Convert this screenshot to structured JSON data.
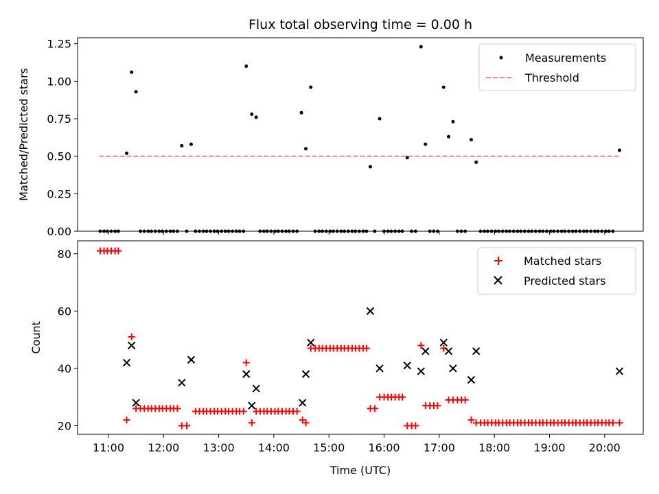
{
  "chart_data": {
    "type": "scatter",
    "title": "Flux total observing time = 0.00 h",
    "xlabel": "Time (UTC)",
    "x_ticks": [
      "11:00",
      "12:00",
      "13:00",
      "14:00",
      "15:00",
      "16:00",
      "17:00",
      "18:00",
      "19:00",
      "20:00"
    ],
    "x_tick_hours": [
      11,
      12,
      13,
      14,
      15,
      16,
      17,
      18,
      19,
      20
    ],
    "xlim": [
      10.44,
      20.7
    ],
    "top": {
      "ylabel": "Matched/Predicted stars",
      "ylim": [
        0,
        1.29
      ],
      "y_ticks": [
        "0.00",
        "0.25",
        "0.50",
        "0.75",
        "1.00",
        "1.25"
      ],
      "y_tick_values": [
        0,
        0.25,
        0.5,
        0.75,
        1.0,
        1.25
      ],
      "legend": {
        "location": "upper right",
        "entries": [
          "Measurements",
          "Threshold"
        ]
      },
      "threshold": {
        "value": 0.5,
        "x_range": [
          10.83,
          20.27
        ],
        "color": "#ff8080"
      },
      "measurements": [
        [
          10.85,
          0
        ],
        [
          10.92,
          0
        ],
        [
          10.98,
          0
        ],
        [
          11.05,
          0
        ],
        [
          11.12,
          0
        ],
        [
          11.18,
          0
        ],
        [
          11.33,
          0.52
        ],
        [
          11.42,
          1.06
        ],
        [
          11.5,
          0.93
        ],
        [
          11.58,
          0
        ],
        [
          11.65,
          0
        ],
        [
          11.72,
          0
        ],
        [
          11.78,
          0
        ],
        [
          11.85,
          0
        ],
        [
          11.92,
          0
        ],
        [
          11.98,
          0
        ],
        [
          12.05,
          0
        ],
        [
          12.12,
          0
        ],
        [
          12.18,
          0
        ],
        [
          12.25,
          0
        ],
        [
          12.33,
          0.57
        ],
        [
          12.42,
          0
        ],
        [
          12.5,
          0.58
        ],
        [
          12.58,
          0
        ],
        [
          12.65,
          0
        ],
        [
          12.72,
          0
        ],
        [
          12.78,
          0
        ],
        [
          12.85,
          0
        ],
        [
          12.92,
          0
        ],
        [
          12.98,
          0
        ],
        [
          13.05,
          0
        ],
        [
          13.12,
          0
        ],
        [
          13.18,
          0
        ],
        [
          13.25,
          0
        ],
        [
          13.32,
          0
        ],
        [
          13.38,
          0
        ],
        [
          13.45,
          0
        ],
        [
          13.5,
          1.1
        ],
        [
          13.6,
          0.78
        ],
        [
          13.68,
          0.76
        ],
        [
          13.75,
          0
        ],
        [
          13.82,
          0
        ],
        [
          13.88,
          0
        ],
        [
          13.95,
          0
        ],
        [
          14.02,
          0
        ],
        [
          14.08,
          0
        ],
        [
          14.15,
          0
        ],
        [
          14.22,
          0
        ],
        [
          14.28,
          0
        ],
        [
          14.35,
          0
        ],
        [
          14.42,
          0
        ],
        [
          14.5,
          0.79
        ],
        [
          14.58,
          0.55
        ],
        [
          14.67,
          0.96
        ],
        [
          14.75,
          0
        ],
        [
          14.82,
          0
        ],
        [
          14.88,
          0
        ],
        [
          14.95,
          0
        ],
        [
          15.02,
          0
        ],
        [
          15.08,
          0
        ],
        [
          15.15,
          0
        ],
        [
          15.22,
          0
        ],
        [
          15.28,
          0
        ],
        [
          15.35,
          0
        ],
        [
          15.42,
          0
        ],
        [
          15.48,
          0
        ],
        [
          15.55,
          0
        ],
        [
          15.62,
          0
        ],
        [
          15.68,
          0
        ],
        [
          15.75,
          0.43
        ],
        [
          15.83,
          0
        ],
        [
          15.92,
          0.75
        ],
        [
          16.0,
          0
        ],
        [
          16.07,
          0
        ],
        [
          16.13,
          0
        ],
        [
          16.2,
          0
        ],
        [
          16.27,
          0
        ],
        [
          16.33,
          0
        ],
        [
          16.42,
          0.49
        ],
        [
          16.5,
          0
        ],
        [
          16.57,
          0
        ],
        [
          16.67,
          1.23
        ],
        [
          16.75,
          0.58
        ],
        [
          16.83,
          0
        ],
        [
          16.9,
          0
        ],
        [
          16.97,
          0
        ],
        [
          17.08,
          0.96
        ],
        [
          17.17,
          0.63
        ],
        [
          17.25,
          0.73
        ],
        [
          17.33,
          0
        ],
        [
          17.4,
          0
        ],
        [
          17.47,
          0
        ],
        [
          17.58,
          0.61
        ],
        [
          17.67,
          0.46
        ],
        [
          17.75,
          0
        ],
        [
          17.82,
          0
        ],
        [
          17.88,
          0
        ],
        [
          17.95,
          0
        ],
        [
          18.02,
          0
        ],
        [
          18.08,
          0
        ],
        [
          18.15,
          0
        ],
        [
          18.22,
          0
        ],
        [
          18.28,
          0
        ],
        [
          18.35,
          0
        ],
        [
          18.42,
          0
        ],
        [
          18.48,
          0
        ],
        [
          18.55,
          0
        ],
        [
          18.62,
          0
        ],
        [
          18.68,
          0
        ],
        [
          18.75,
          0
        ],
        [
          18.82,
          0
        ],
        [
          18.88,
          0
        ],
        [
          18.95,
          0
        ],
        [
          19.02,
          0
        ],
        [
          19.08,
          0
        ],
        [
          19.15,
          0
        ],
        [
          19.22,
          0
        ],
        [
          19.28,
          0
        ],
        [
          19.35,
          0
        ],
        [
          19.42,
          0
        ],
        [
          19.48,
          0
        ],
        [
          19.55,
          0
        ],
        [
          19.62,
          0
        ],
        [
          19.68,
          0
        ],
        [
          19.75,
          0
        ],
        [
          19.82,
          0
        ],
        [
          19.88,
          0
        ],
        [
          19.95,
          0
        ],
        [
          20.02,
          0
        ],
        [
          20.08,
          0
        ],
        [
          20.15,
          0
        ],
        [
          20.27,
          0.54
        ]
      ]
    },
    "bottom": {
      "ylabel": "Count",
      "ylim": [
        17,
        84.5
      ],
      "y_ticks": [
        "20",
        "40",
        "60",
        "80"
      ],
      "y_tick_values": [
        20,
        40,
        60,
        80
      ],
      "legend": {
        "location": "upper right",
        "entries": [
          "Matched stars",
          "Predicted stars"
        ]
      },
      "matched_color": "#ff0000",
      "predicted_color": "#000000",
      "matched": [
        [
          10.85,
          81
        ],
        [
          10.92,
          81
        ],
        [
          10.98,
          81
        ],
        [
          11.05,
          81
        ],
        [
          11.12,
          81
        ],
        [
          11.18,
          81
        ],
        [
          11.33,
          22
        ],
        [
          11.42,
          51
        ],
        [
          11.5,
          26
        ],
        [
          11.58,
          26
        ],
        [
          11.65,
          26
        ],
        [
          11.72,
          26
        ],
        [
          11.78,
          26
        ],
        [
          11.85,
          26
        ],
        [
          11.92,
          26
        ],
        [
          11.98,
          26
        ],
        [
          12.05,
          26
        ],
        [
          12.12,
          26
        ],
        [
          12.18,
          26
        ],
        [
          12.25,
          26
        ],
        [
          12.33,
          20
        ],
        [
          12.42,
          20
        ],
        [
          12.58,
          25
        ],
        [
          12.65,
          25
        ],
        [
          12.72,
          25
        ],
        [
          12.78,
          25
        ],
        [
          12.85,
          25
        ],
        [
          12.92,
          25
        ],
        [
          12.98,
          25
        ],
        [
          13.05,
          25
        ],
        [
          13.12,
          25
        ],
        [
          13.18,
          25
        ],
        [
          13.25,
          25
        ],
        [
          13.32,
          25
        ],
        [
          13.38,
          25
        ],
        [
          13.45,
          25
        ],
        [
          13.5,
          42
        ],
        [
          13.6,
          21
        ],
        [
          13.68,
          25
        ],
        [
          13.75,
          25
        ],
        [
          13.82,
          25
        ],
        [
          13.88,
          25
        ],
        [
          13.95,
          25
        ],
        [
          14.02,
          25
        ],
        [
          14.08,
          25
        ],
        [
          14.15,
          25
        ],
        [
          14.22,
          25
        ],
        [
          14.28,
          25
        ],
        [
          14.35,
          25
        ],
        [
          14.42,
          25
        ],
        [
          14.52,
          22
        ],
        [
          14.58,
          21
        ],
        [
          14.67,
          47
        ],
        [
          14.75,
          47
        ],
        [
          14.82,
          47
        ],
        [
          14.88,
          47
        ],
        [
          14.95,
          47
        ],
        [
          15.02,
          47
        ],
        [
          15.08,
          47
        ],
        [
          15.15,
          47
        ],
        [
          15.22,
          47
        ],
        [
          15.28,
          47
        ],
        [
          15.35,
          47
        ],
        [
          15.42,
          47
        ],
        [
          15.48,
          47
        ],
        [
          15.55,
          47
        ],
        [
          15.62,
          47
        ],
        [
          15.68,
          47
        ],
        [
          15.75,
          26
        ],
        [
          15.83,
          26
        ],
        [
          15.92,
          30
        ],
        [
          16.0,
          30
        ],
        [
          16.07,
          30
        ],
        [
          16.13,
          30
        ],
        [
          16.2,
          30
        ],
        [
          16.27,
          30
        ],
        [
          16.33,
          30
        ],
        [
          16.42,
          20
        ],
        [
          16.5,
          20
        ],
        [
          16.57,
          20
        ],
        [
          16.67,
          48
        ],
        [
          16.75,
          27
        ],
        [
          16.83,
          27
        ],
        [
          16.9,
          27
        ],
        [
          16.97,
          27
        ],
        [
          17.08,
          47
        ],
        [
          17.17,
          29
        ],
        [
          17.25,
          29
        ],
        [
          17.33,
          29
        ],
        [
          17.4,
          29
        ],
        [
          17.47,
          29
        ],
        [
          17.58,
          22
        ],
        [
          17.67,
          21
        ],
        [
          17.75,
          21
        ],
        [
          17.82,
          21
        ],
        [
          17.88,
          21
        ],
        [
          17.95,
          21
        ],
        [
          18.02,
          21
        ],
        [
          18.08,
          21
        ],
        [
          18.15,
          21
        ],
        [
          18.22,
          21
        ],
        [
          18.28,
          21
        ],
        [
          18.35,
          21
        ],
        [
          18.42,
          21
        ],
        [
          18.48,
          21
        ],
        [
          18.55,
          21
        ],
        [
          18.62,
          21
        ],
        [
          18.68,
          21
        ],
        [
          18.75,
          21
        ],
        [
          18.82,
          21
        ],
        [
          18.88,
          21
        ],
        [
          18.95,
          21
        ],
        [
          19.02,
          21
        ],
        [
          19.08,
          21
        ],
        [
          19.15,
          21
        ],
        [
          19.22,
          21
        ],
        [
          19.28,
          21
        ],
        [
          19.35,
          21
        ],
        [
          19.42,
          21
        ],
        [
          19.48,
          21
        ],
        [
          19.55,
          21
        ],
        [
          19.62,
          21
        ],
        [
          19.68,
          21
        ],
        [
          19.75,
          21
        ],
        [
          19.82,
          21
        ],
        [
          19.88,
          21
        ],
        [
          19.95,
          21
        ],
        [
          20.02,
          21
        ],
        [
          20.08,
          21
        ],
        [
          20.15,
          21
        ],
        [
          20.27,
          21
        ]
      ],
      "predicted": [
        [
          11.33,
          42
        ],
        [
          11.42,
          48
        ],
        [
          11.5,
          28
        ],
        [
          12.33,
          35
        ],
        [
          12.5,
          43
        ],
        [
          13.5,
          38
        ],
        [
          13.6,
          27
        ],
        [
          13.68,
          33
        ],
        [
          14.52,
          28
        ],
        [
          14.58,
          38
        ],
        [
          14.67,
          49
        ],
        [
          15.75,
          60
        ],
        [
          15.92,
          40
        ],
        [
          16.42,
          41
        ],
        [
          16.67,
          39
        ],
        [
          16.75,
          46
        ],
        [
          17.08,
          49
        ],
        [
          17.17,
          46
        ],
        [
          17.25,
          40
        ],
        [
          17.58,
          36
        ],
        [
          17.67,
          46
        ],
        [
          20.27,
          39
        ]
      ]
    }
  }
}
